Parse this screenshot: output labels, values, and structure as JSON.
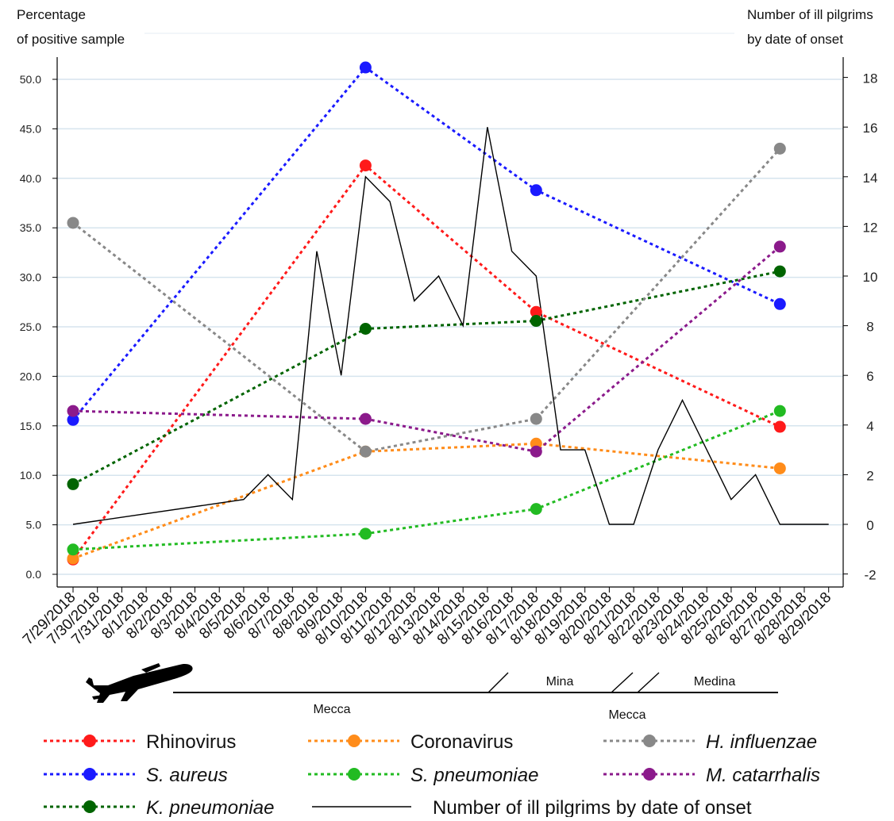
{
  "chart_data": {
    "type": "line",
    "left_axis": {
      "label_line1": "Percentage",
      "label_line2": "of positive sample",
      "range": [
        0,
        50
      ],
      "ticks": [
        "0.0",
        "5.0",
        "10.0",
        "15.0",
        "20.0",
        "25.0",
        "30.0",
        "35.0",
        "40.0",
        "45.0",
        "50.0"
      ]
    },
    "right_axis": {
      "label_line1": "Number of ill pilgrims",
      "label_line2": "by date of onset",
      "range": [
        -2,
        18
      ],
      "ticks": [
        "-2",
        "0",
        "2",
        "4",
        "6",
        "8",
        "10",
        "12",
        "14",
        "16",
        "18"
      ]
    },
    "categories": [
      "7/29/2018",
      "7/30/2018",
      "7/31/2018",
      "8/1/2018",
      "8/2/2018",
      "8/3/2018",
      "8/4/2018",
      "8/5/2018",
      "8/6/2018",
      "8/7/2018",
      "8/8/2018",
      "8/9/2018",
      "8/10/2018",
      "8/11/2018",
      "8/12/2018",
      "8/13/2018",
      "8/14/2018",
      "8/15/2018",
      "8/16/2018",
      "8/17/2018",
      "8/18/2018",
      "8/19/2018",
      "8/20/2018",
      "8/21/2018",
      "8/22/2018",
      "8/23/2018",
      "8/24/2018",
      "8/25/2018",
      "8/26/2018",
      "8/27/2018",
      "8/28/2018",
      "8/29/2018"
    ],
    "series": [
      {
        "name": "Rhinovirus",
        "italic": false,
        "color": "#ff1a1a",
        "style": "dotted",
        "axis": "left",
        "points": [
          [
            "7/29/2018",
            1.5
          ],
          [
            "8/10/2018",
            41.3
          ],
          [
            "8/17/2018",
            26.5
          ],
          [
            "8/27/2018",
            14.9
          ]
        ]
      },
      {
        "name": "S. aureus",
        "italic": true,
        "color": "#1a1aff",
        "style": "dotted",
        "axis": "left",
        "points": [
          [
            "7/29/2018",
            15.6
          ],
          [
            "8/10/2018",
            51.2
          ],
          [
            "8/17/2018",
            38.8
          ],
          [
            "8/27/2018",
            27.3
          ]
        ]
      },
      {
        "name": "K. pneumoniae",
        "italic": true,
        "color": "#006400",
        "style": "dotted",
        "axis": "left",
        "points": [
          [
            "7/29/2018",
            9.1
          ],
          [
            "8/10/2018",
            24.8
          ],
          [
            "8/17/2018",
            25.6
          ],
          [
            "8/27/2018",
            30.6
          ]
        ]
      },
      {
        "name": "Coronavirus",
        "italic": false,
        "color": "#ff8c1a",
        "style": "dotted",
        "axis": "left",
        "points": [
          [
            "7/29/2018",
            1.6
          ],
          [
            "8/10/2018",
            12.4
          ],
          [
            "8/17/2018",
            13.2
          ],
          [
            "8/27/2018",
            10.7
          ]
        ]
      },
      {
        "name": "S. pneumoniae",
        "italic": true,
        "color": "#22bb22",
        "style": "dotted",
        "axis": "left",
        "points": [
          [
            "7/29/2018",
            2.5
          ],
          [
            "8/10/2018",
            4.1
          ],
          [
            "8/17/2018",
            6.6
          ],
          [
            "8/27/2018",
            16.5
          ]
        ]
      },
      {
        "name": "H. influenzae",
        "italic": true,
        "color": "#888888",
        "style": "dotted",
        "axis": "left",
        "points": [
          [
            "7/29/2018",
            35.5
          ],
          [
            "8/10/2018",
            12.4
          ],
          [
            "8/17/2018",
            15.7
          ],
          [
            "8/27/2018",
            43.0
          ]
        ]
      },
      {
        "name": "M. catarrhalis",
        "italic": true,
        "color": "#8b1a8b",
        "style": "dotted",
        "axis": "left",
        "points": [
          [
            "7/29/2018",
            16.5
          ],
          [
            "8/10/2018",
            15.7
          ],
          [
            "8/17/2018",
            12.4
          ],
          [
            "8/27/2018",
            33.1
          ]
        ]
      },
      {
        "name": "Number of ill pilgrims by date of onset",
        "italic": false,
        "color": "#000000",
        "style": "solid",
        "axis": "right",
        "points": [
          [
            "7/29/2018",
            0
          ],
          [
            "8/5/2018",
            1
          ],
          [
            "8/6/2018",
            2
          ],
          [
            "8/7/2018",
            1
          ],
          [
            "8/8/2018",
            11
          ],
          [
            "8/9/2018",
            6
          ],
          [
            "8/10/2018",
            14
          ],
          [
            "8/11/2018",
            13
          ],
          [
            "8/12/2018",
            9
          ],
          [
            "8/13/2018",
            10
          ],
          [
            "8/14/2018",
            8
          ],
          [
            "8/15/2018",
            16
          ],
          [
            "8/16/2018",
            11
          ],
          [
            "8/17/2018",
            10
          ],
          [
            "8/18/2018",
            3
          ],
          [
            "8/19/2018",
            3
          ],
          [
            "8/20/2018",
            0
          ],
          [
            "8/21/2018",
            0
          ],
          [
            "8/22/2018",
            3
          ],
          [
            "8/23/2018",
            5
          ],
          [
            "8/24/2018",
            3
          ],
          [
            "8/25/2018",
            1
          ],
          [
            "8/26/2018",
            2
          ],
          [
            "8/27/2018",
            0
          ],
          [
            "8/28/2018",
            0
          ],
          [
            "8/29/2018",
            0
          ]
        ]
      }
    ],
    "grid": true
  },
  "itinerary": {
    "segments": [
      {
        "label": "Mecca",
        "from": "8/4/2018",
        "to": "8/16/2018"
      },
      {
        "label": "Mina",
        "from": "8/16/2018",
        "to": "8/20/2018"
      },
      {
        "label": "Mecca",
        "from": "8/20/2018",
        "to": "8/21/2018"
      },
      {
        "label": "Medina",
        "from": "8/21/2018",
        "to": "8/27/2018"
      }
    ],
    "icon": "airplane-icon"
  }
}
